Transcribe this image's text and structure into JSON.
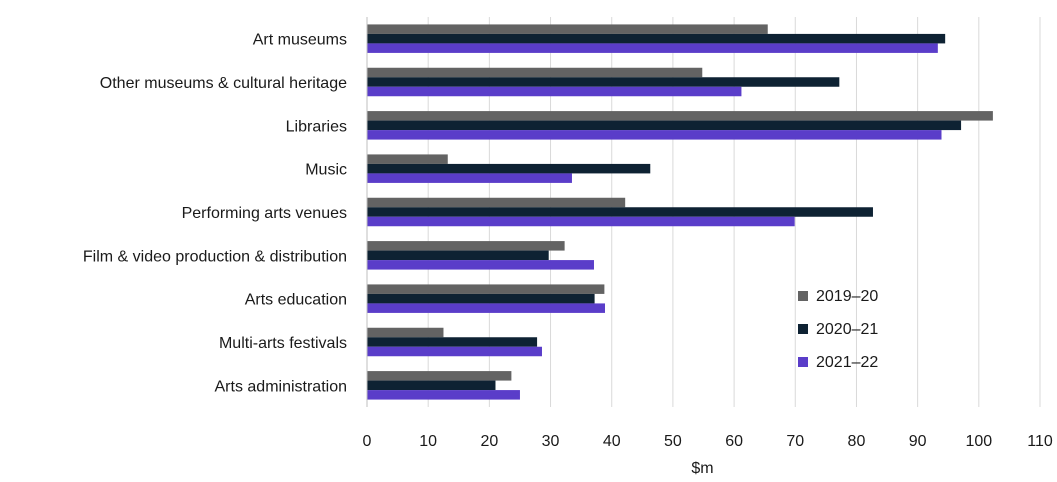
{
  "chart_data": {
    "type": "bar",
    "orientation": "horizontal",
    "categories": [
      "Art museums",
      "Other museums & cultural heritage",
      "Libraries",
      "Music ",
      "Performing arts venues",
      "Film & video production & distribution",
      "Arts education",
      "Multi-arts festivals",
      "Arts administration"
    ],
    "series": [
      {
        "name": "2019–20",
        "color": "#636363",
        "values": [
          65.5,
          54.8,
          102.3,
          13.2,
          42.2,
          32.3,
          38.8,
          12.5,
          23.6
        ]
      },
      {
        "name": "2020–21",
        "color": "#0e2233",
        "values": [
          94.5,
          77.2,
          97.1,
          46.3,
          82.7,
          29.7,
          37.2,
          27.8,
          21.0
        ]
      },
      {
        "name": "2021–22",
        "color": "#5a3dc9",
        "values": [
          93.3,
          61.2,
          93.9,
          33.5,
          69.9,
          37.1,
          38.9,
          28.6,
          25.0
        ]
      }
    ],
    "xlabel": "$m",
    "ylabel": "",
    "xlim": [
      0,
      110
    ],
    "xticks": [
      "0",
      "10",
      "20",
      "30",
      "40",
      "50",
      "60",
      "70",
      "80",
      "90",
      "100",
      "110"
    ],
    "grid": "vertical",
    "legend_position": "right"
  }
}
